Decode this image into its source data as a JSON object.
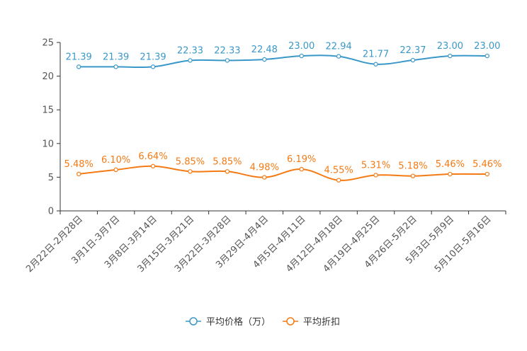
{
  "chart_data": {
    "type": "line",
    "categories": [
      "2月22日-2月28日",
      "3月1日-3月7日",
      "3月8日-3月14日",
      "3月15日-3月21日",
      "3月22日-3月28日",
      "3月29日-4月4日",
      "4月5日-4月11日",
      "4月12日-4月18日",
      "4月19日-4月25日",
      "4月26日-5月2日",
      "5月3日-5月9日",
      "5月10日-5月16日"
    ],
    "series": [
      {
        "name": "平均价格（万）",
        "color": "#3a98c9",
        "values": [
          21.39,
          21.39,
          21.39,
          22.33,
          22.33,
          22.48,
          23.0,
          22.94,
          21.77,
          22.37,
          23.0,
          23.0
        ],
        "labels": [
          "21.39",
          "21.39",
          "21.39",
          "22.33",
          "22.33",
          "22.48",
          "23.00",
          "22.94",
          "21.77",
          "22.37",
          "23.00",
          "23.00"
        ]
      },
      {
        "name": "平均折扣",
        "color": "#f47a14",
        "values": [
          5.48,
          6.1,
          6.64,
          5.85,
          5.85,
          4.98,
          6.19,
          4.55,
          5.31,
          5.18,
          5.46,
          5.46
        ],
        "labels": [
          "5.48%",
          "6.10%",
          "6.64%",
          "5.85%",
          "5.85%",
          "4.98%",
          "6.19%",
          "4.55%",
          "5.31%",
          "5.18%",
          "5.46%",
          "5.46%"
        ]
      }
    ],
    "yticks": [
      "0",
      "5",
      "10",
      "15",
      "20",
      "25"
    ],
    "ylim": [
      0,
      25
    ],
    "title": "",
    "xlabel": "",
    "ylabel": "",
    "legend_position": "bottom-center",
    "grid": false
  }
}
